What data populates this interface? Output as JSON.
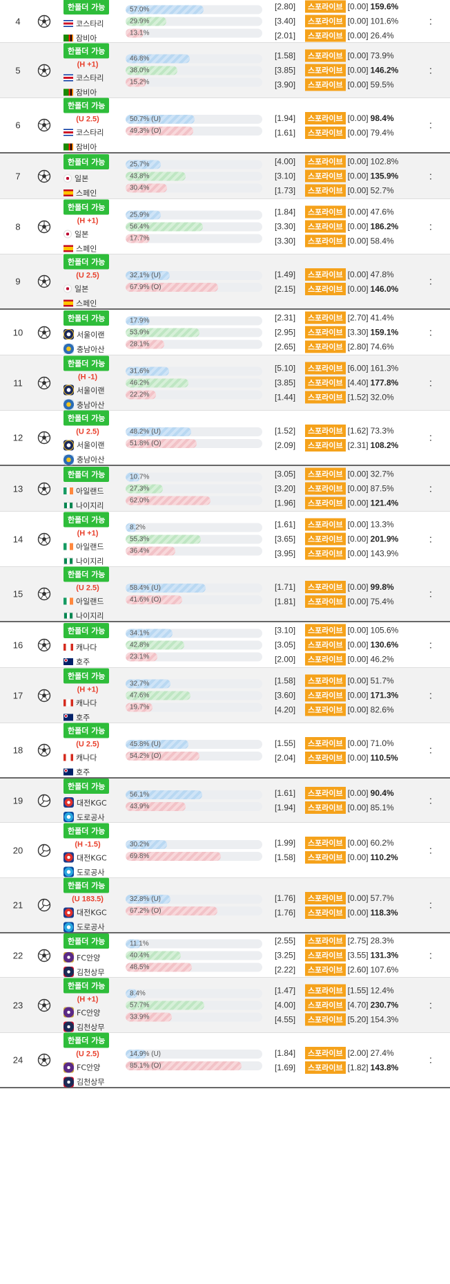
{
  "badge_text": "한폴더 가능",
  "provider": "스포라이브",
  "more_symbol": ":",
  "rows": [
    {
      "no": "4",
      "sport": "soccer",
      "cond": "",
      "teams": [
        {
          "name": "코스타리",
          "flag": "costarica"
        },
        {
          "name": "잠비아",
          "flag": "zambia"
        }
      ],
      "bars": [
        {
          "label": "57.0%",
          "pct": 57.0,
          "color": "b"
        },
        {
          "label": "29.9%",
          "pct": 29.9,
          "color": "g"
        },
        {
          "label": "13.1%",
          "pct": 13.1,
          "color": "r"
        }
      ],
      "odds": [
        {
          "o": "[2.80]",
          "p": "[0.00]",
          "pct": "159.6%",
          "hi": true
        },
        {
          "o": "[3.40]",
          "p": "[0.00]",
          "pct": "101.6%",
          "hi": false
        },
        {
          "o": "[2.01]",
          "p": "[0.00]",
          "pct": "26.4%",
          "hi": false
        }
      ]
    },
    {
      "no": "5",
      "sport": "soccer",
      "cond": "(H +1)",
      "teams": [
        {
          "name": "코스타리",
          "flag": "costarica"
        },
        {
          "name": "잠비아",
          "flag": "zambia"
        }
      ],
      "bars": [
        {
          "label": "46.8%",
          "pct": 46.8,
          "color": "b"
        },
        {
          "label": "38.0%",
          "pct": 38.0,
          "color": "g"
        },
        {
          "label": "15.2%",
          "pct": 15.2,
          "color": "r"
        }
      ],
      "odds": [
        {
          "o": "[1.58]",
          "p": "[0.00]",
          "pct": "73.9%",
          "hi": false
        },
        {
          "o": "[3.85]",
          "p": "[0.00]",
          "pct": "146.2%",
          "hi": true
        },
        {
          "o": "[3.90]",
          "p": "[0.00]",
          "pct": "59.5%",
          "hi": false
        }
      ]
    },
    {
      "no": "6",
      "sport": "soccer",
      "cond": "(U 2.5)",
      "teams": [
        {
          "name": "코스타리",
          "flag": "costarica"
        },
        {
          "name": "잠비아",
          "flag": "zambia"
        }
      ],
      "bars": [
        {
          "label": "50.7% (U)",
          "pct": 50.7,
          "color": "b"
        },
        {
          "label": "49.3% (O)",
          "pct": 49.3,
          "color": "r"
        }
      ],
      "odds": [
        {
          "o": "[1.94]",
          "p": "[0.00]",
          "pct": "98.4%",
          "hi": true
        },
        {
          "o": "[1.61]",
          "p": "[0.00]",
          "pct": "79.4%",
          "hi": false
        }
      ]
    },
    {
      "no": "7",
      "sport": "soccer",
      "cond": "",
      "teams": [
        {
          "name": "일본",
          "flag": "japan"
        },
        {
          "name": "스페인",
          "flag": "spain"
        }
      ],
      "bars": [
        {
          "label": "25.7%",
          "pct": 25.7,
          "color": "b"
        },
        {
          "label": "43.8%",
          "pct": 43.8,
          "color": "g"
        },
        {
          "label": "30.4%",
          "pct": 30.4,
          "color": "r"
        }
      ],
      "odds": [
        {
          "o": "[4.00]",
          "p": "[0.00]",
          "pct": "102.8%",
          "hi": false
        },
        {
          "o": "[3.10]",
          "p": "[0.00]",
          "pct": "135.9%",
          "hi": true
        },
        {
          "o": "[1.73]",
          "p": "[0.00]",
          "pct": "52.7%",
          "hi": false
        }
      ]
    },
    {
      "no": "8",
      "sport": "soccer",
      "cond": "(H +1)",
      "teams": [
        {
          "name": "일본",
          "flag": "japan"
        },
        {
          "name": "스페인",
          "flag": "spain"
        }
      ],
      "bars": [
        {
          "label": "25.9%",
          "pct": 25.9,
          "color": "b"
        },
        {
          "label": "56.4%",
          "pct": 56.4,
          "color": "g"
        },
        {
          "label": "17.7%",
          "pct": 17.7,
          "color": "r"
        }
      ],
      "odds": [
        {
          "o": "[1.84]",
          "p": "[0.00]",
          "pct": "47.6%",
          "hi": false
        },
        {
          "o": "[3.30]",
          "p": "[0.00]",
          "pct": "186.2%",
          "hi": true
        },
        {
          "o": "[3.30]",
          "p": "[0.00]",
          "pct": "58.4%",
          "hi": false
        }
      ]
    },
    {
      "no": "9",
      "sport": "soccer",
      "cond": "(U 2.5)",
      "teams": [
        {
          "name": "일본",
          "flag": "japan"
        },
        {
          "name": "스페인",
          "flag": "spain"
        }
      ],
      "bars": [
        {
          "label": "32.1% (U)",
          "pct": 32.1,
          "color": "b"
        },
        {
          "label": "67.9% (O)",
          "pct": 67.9,
          "color": "r"
        }
      ],
      "odds": [
        {
          "o": "[1.49]",
          "p": "[0.00]",
          "pct": "47.8%",
          "hi": false
        },
        {
          "o": "[2.15]",
          "p": "[0.00]",
          "pct": "146.0%",
          "hi": true
        }
      ]
    },
    {
      "no": "10",
      "sport": "soccer",
      "cond": "",
      "teams": [
        {
          "name": "서울이랜",
          "flag": "seoul"
        },
        {
          "name": "충남아산",
          "flag": "chungnam"
        }
      ],
      "bars": [
        {
          "label": "17.9%",
          "pct": 17.9,
          "color": "b"
        },
        {
          "label": "53.9%",
          "pct": 53.9,
          "color": "g"
        },
        {
          "label": "28.1%",
          "pct": 28.1,
          "color": "r"
        }
      ],
      "odds": [
        {
          "o": "[2.31]",
          "p": "[2.70]",
          "pct": "41.4%",
          "hi": false
        },
        {
          "o": "[2.95]",
          "p": "[3.30]",
          "pct": "159.1%",
          "hi": true
        },
        {
          "o": "[2.65]",
          "p": "[2.80]",
          "pct": "74.6%",
          "hi": false
        }
      ]
    },
    {
      "no": "11",
      "sport": "soccer",
      "cond": "(H -1)",
      "teams": [
        {
          "name": "서울이랜",
          "flag": "seoul"
        },
        {
          "name": "충남아산",
          "flag": "chungnam"
        }
      ],
      "bars": [
        {
          "label": "31.6%",
          "pct": 31.6,
          "color": "b"
        },
        {
          "label": "46.2%",
          "pct": 46.2,
          "color": "g"
        },
        {
          "label": "22.2%",
          "pct": 22.2,
          "color": "r"
        }
      ],
      "odds": [
        {
          "o": "[5.10]",
          "p": "[6.00]",
          "pct": "161.3%",
          "hi": false
        },
        {
          "o": "[3.85]",
          "p": "[4.40]",
          "pct": "177.8%",
          "hi": true
        },
        {
          "o": "[1.44]",
          "p": "[1.52]",
          "pct": "32.0%",
          "hi": false
        }
      ]
    },
    {
      "no": "12",
      "sport": "soccer",
      "cond": "(U 2.5)",
      "teams": [
        {
          "name": "서울이랜",
          "flag": "seoul"
        },
        {
          "name": "충남아산",
          "flag": "chungnam"
        }
      ],
      "bars": [
        {
          "label": "48.2% (U)",
          "pct": 48.2,
          "color": "b"
        },
        {
          "label": "51.8% (O)",
          "pct": 51.8,
          "color": "r"
        }
      ],
      "odds": [
        {
          "o": "[1.52]",
          "p": "[1.62]",
          "pct": "73.3%",
          "hi": false
        },
        {
          "o": "[2.09]",
          "p": "[2.31]",
          "pct": "108.2%",
          "hi": true
        }
      ]
    },
    {
      "no": "13",
      "sport": "soccer",
      "cond": "",
      "teams": [
        {
          "name": "아일랜드",
          "flag": "ireland"
        },
        {
          "name": "나이지리",
          "flag": "nigeria"
        }
      ],
      "bars": [
        {
          "label": "10.7%",
          "pct": 10.7,
          "color": "b"
        },
        {
          "label": "27.3%",
          "pct": 27.3,
          "color": "g"
        },
        {
          "label": "62.0%",
          "pct": 62.0,
          "color": "r"
        }
      ],
      "odds": [
        {
          "o": "[3.05]",
          "p": "[0.00]",
          "pct": "32.7%",
          "hi": false
        },
        {
          "o": "[3.20]",
          "p": "[0.00]",
          "pct": "87.5%",
          "hi": false
        },
        {
          "o": "[1.96]",
          "p": "[0.00]",
          "pct": "121.4%",
          "hi": true
        }
      ]
    },
    {
      "no": "14",
      "sport": "soccer",
      "cond": "(H +1)",
      "teams": [
        {
          "name": "아일랜드",
          "flag": "ireland"
        },
        {
          "name": "나이지리",
          "flag": "nigeria"
        }
      ],
      "bars": [
        {
          "label": "8.2%",
          "pct": 8.2,
          "color": "b"
        },
        {
          "label": "55.3%",
          "pct": 55.3,
          "color": "g"
        },
        {
          "label": "36.4%",
          "pct": 36.4,
          "color": "r"
        }
      ],
      "odds": [
        {
          "o": "[1.61]",
          "p": "[0.00]",
          "pct": "13.3%",
          "hi": false
        },
        {
          "o": "[3.65]",
          "p": "[0.00]",
          "pct": "201.9%",
          "hi": true
        },
        {
          "o": "[3.95]",
          "p": "[0.00]",
          "pct": "143.9%",
          "hi": false
        }
      ]
    },
    {
      "no": "15",
      "sport": "soccer",
      "cond": "(U 2.5)",
      "teams": [
        {
          "name": "아일랜드",
          "flag": "ireland"
        },
        {
          "name": "나이지리",
          "flag": "nigeria"
        }
      ],
      "bars": [
        {
          "label": "58.4% (U)",
          "pct": 58.4,
          "color": "b"
        },
        {
          "label": "41.6% (O)",
          "pct": 41.6,
          "color": "r"
        }
      ],
      "odds": [
        {
          "o": "[1.71]",
          "p": "[0.00]",
          "pct": "99.8%",
          "hi": true
        },
        {
          "o": "[1.81]",
          "p": "[0.00]",
          "pct": "75.4%",
          "hi": false
        }
      ]
    },
    {
      "no": "16",
      "sport": "soccer",
      "cond": "",
      "teams": [
        {
          "name": "캐나다",
          "flag": "canada"
        },
        {
          "name": "호주",
          "flag": "australia"
        }
      ],
      "bars": [
        {
          "label": "34.1%",
          "pct": 34.1,
          "color": "b"
        },
        {
          "label": "42.8%",
          "pct": 42.8,
          "color": "g"
        },
        {
          "label": "23.1%",
          "pct": 23.1,
          "color": "r"
        }
      ],
      "odds": [
        {
          "o": "[3.10]",
          "p": "[0.00]",
          "pct": "105.6%",
          "hi": false
        },
        {
          "o": "[3.05]",
          "p": "[0.00]",
          "pct": "130.6%",
          "hi": true
        },
        {
          "o": "[2.00]",
          "p": "[0.00]",
          "pct": "46.2%",
          "hi": false
        }
      ]
    },
    {
      "no": "17",
      "sport": "soccer",
      "cond": "(H +1)",
      "teams": [
        {
          "name": "캐나다",
          "flag": "canada"
        },
        {
          "name": "호주",
          "flag": "australia"
        }
      ],
      "bars": [
        {
          "label": "32.7%",
          "pct": 32.7,
          "color": "b"
        },
        {
          "label": "47.6%",
          "pct": 47.6,
          "color": "g"
        },
        {
          "label": "19.7%",
          "pct": 19.7,
          "color": "r"
        }
      ],
      "odds": [
        {
          "o": "[1.58]",
          "p": "[0.00]",
          "pct": "51.7%",
          "hi": false
        },
        {
          "o": "[3.60]",
          "p": "[0.00]",
          "pct": "171.3%",
          "hi": true
        },
        {
          "o": "[4.20]",
          "p": "[0.00]",
          "pct": "82.6%",
          "hi": false
        }
      ]
    },
    {
      "no": "18",
      "sport": "soccer",
      "cond": "(U 2.5)",
      "teams": [
        {
          "name": "캐나다",
          "flag": "canada"
        },
        {
          "name": "호주",
          "flag": "australia"
        }
      ],
      "bars": [
        {
          "label": "45.8% (U)",
          "pct": 45.8,
          "color": "b"
        },
        {
          "label": "54.2% (O)",
          "pct": 54.2,
          "color": "r"
        }
      ],
      "odds": [
        {
          "o": "[1.55]",
          "p": "[0.00]",
          "pct": "71.0%",
          "hi": false
        },
        {
          "o": "[2.04]",
          "p": "[0.00]",
          "pct": "110.5%",
          "hi": true
        }
      ]
    },
    {
      "no": "19",
      "sport": "volleyball",
      "cond": "",
      "teams": [
        {
          "name": "대전KGC",
          "flag": "kgc"
        },
        {
          "name": "도로공사",
          "flag": "ex"
        }
      ],
      "bars": [
        {
          "label": "56.1%",
          "pct": 56.1,
          "color": "b"
        },
        {
          "label": "43.9%",
          "pct": 43.9,
          "color": "r"
        }
      ],
      "odds": [
        {
          "o": "[1.61]",
          "p": "[0.00]",
          "pct": "90.4%",
          "hi": true
        },
        {
          "o": "[1.94]",
          "p": "[0.00]",
          "pct": "85.1%",
          "hi": false
        }
      ]
    },
    {
      "no": "20",
      "sport": "volleyball",
      "cond": "(H -1.5)",
      "teams": [
        {
          "name": "대전KGC",
          "flag": "kgc"
        },
        {
          "name": "도로공사",
          "flag": "ex"
        }
      ],
      "bars": [
        {
          "label": "30.2%",
          "pct": 30.2,
          "color": "b"
        },
        {
          "label": "69.8%",
          "pct": 69.8,
          "color": "r"
        }
      ],
      "odds": [
        {
          "o": "[1.99]",
          "p": "[0.00]",
          "pct": "60.2%",
          "hi": false
        },
        {
          "o": "[1.58]",
          "p": "[0.00]",
          "pct": "110.2%",
          "hi": true
        }
      ]
    },
    {
      "no": "21",
      "sport": "volleyball",
      "cond": "(U 183.5)",
      "teams": [
        {
          "name": "대전KGC",
          "flag": "kgc"
        },
        {
          "name": "도로공사",
          "flag": "ex"
        }
      ],
      "bars": [
        {
          "label": "32.8% (U)",
          "pct": 32.8,
          "color": "b"
        },
        {
          "label": "67.2% (O)",
          "pct": 67.2,
          "color": "r"
        }
      ],
      "odds": [
        {
          "o": "[1.76]",
          "p": "[0.00]",
          "pct": "57.7%",
          "hi": false
        },
        {
          "o": "[1.76]",
          "p": "[0.00]",
          "pct": "118.3%",
          "hi": true
        }
      ]
    },
    {
      "no": "22",
      "sport": "soccer",
      "cond": "",
      "teams": [
        {
          "name": "FC안양",
          "flag": "anyang"
        },
        {
          "name": "김천상무",
          "flag": "gimcheon"
        }
      ],
      "bars": [
        {
          "label": "11.1%",
          "pct": 11.1,
          "color": "b"
        },
        {
          "label": "40.4%",
          "pct": 40.4,
          "color": "g"
        },
        {
          "label": "48.5%",
          "pct": 48.5,
          "color": "r"
        }
      ],
      "odds": [
        {
          "o": "[2.55]",
          "p": "[2.75]",
          "pct": "28.3%",
          "hi": false
        },
        {
          "o": "[3.25]",
          "p": "[3.55]",
          "pct": "131.3%",
          "hi": true
        },
        {
          "o": "[2.22]",
          "p": "[2.60]",
          "pct": "107.6%",
          "hi": false
        }
      ]
    },
    {
      "no": "23",
      "sport": "soccer",
      "cond": "(H +1)",
      "teams": [
        {
          "name": "FC안양",
          "flag": "anyang"
        },
        {
          "name": "김천상무",
          "flag": "gimcheon"
        }
      ],
      "bars": [
        {
          "label": "8.4%",
          "pct": 8.4,
          "color": "b"
        },
        {
          "label": "57.7%",
          "pct": 57.7,
          "color": "g"
        },
        {
          "label": "33.9%",
          "pct": 33.9,
          "color": "r"
        }
      ],
      "odds": [
        {
          "o": "[1.47]",
          "p": "[1.55]",
          "pct": "12.4%",
          "hi": false
        },
        {
          "o": "[4.00]",
          "p": "[4.70]",
          "pct": "230.7%",
          "hi": true
        },
        {
          "o": "[4.55]",
          "p": "[5.20]",
          "pct": "154.3%",
          "hi": false
        }
      ]
    },
    {
      "no": "24",
      "sport": "soccer",
      "cond": "(U 2.5)",
      "teams": [
        {
          "name": "FC안양",
          "flag": "anyang"
        },
        {
          "name": "김천상무",
          "flag": "gimcheon"
        }
      ],
      "bars": [
        {
          "label": "14.9% (U)",
          "pct": 14.9,
          "color": "b"
        },
        {
          "label": "85.1% (O)",
          "pct": 85.1,
          "color": "r"
        }
      ],
      "odds": [
        {
          "o": "[1.84]",
          "p": "[2.00]",
          "pct": "27.4%",
          "hi": false
        },
        {
          "o": "[1.69]",
          "p": "[1.82]",
          "pct": "143.8%",
          "hi": true
        }
      ]
    }
  ]
}
